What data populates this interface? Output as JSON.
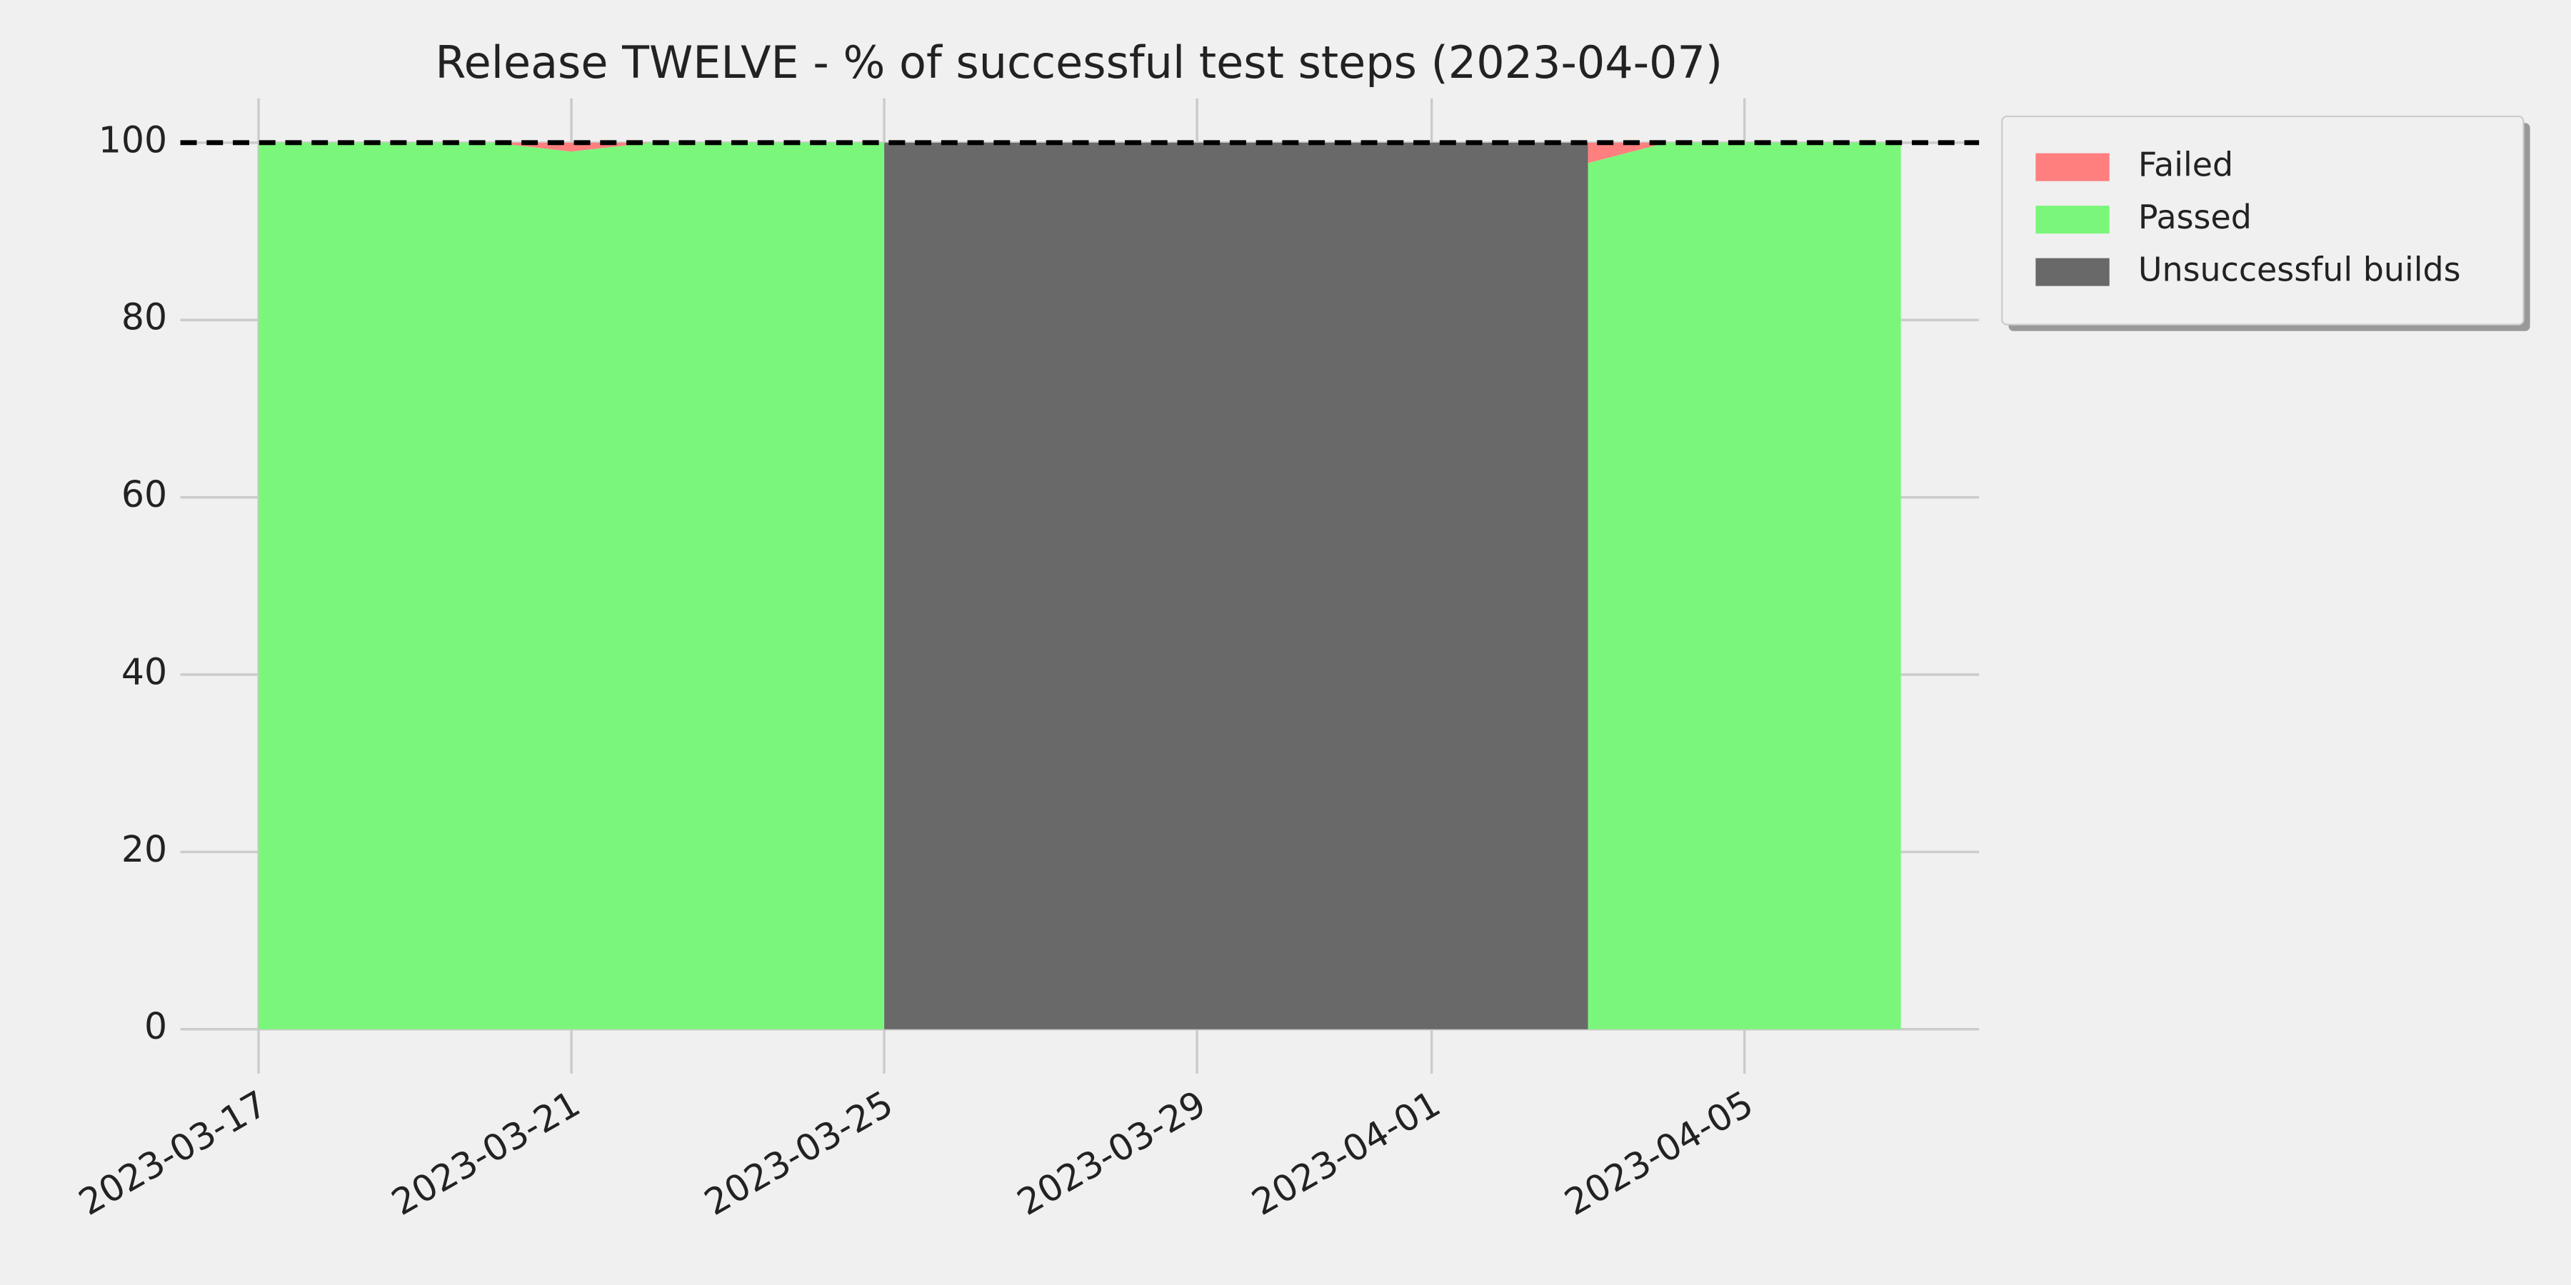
{
  "chart_data": {
    "type": "stacked_area",
    "title": "Release TWELVE - % of successful test steps (2023-04-07)",
    "x": [
      "2023-03-17",
      "2023-03-20",
      "2023-03-21",
      "2023-03-22",
      "2023-03-25",
      "2023-03-25",
      "2023-04-03",
      "2023-04-03",
      "2023-04-04",
      "2023-04-07"
    ],
    "series": [
      {
        "name": "Failed",
        "color": "#ff7f7f",
        "values": [
          0,
          0,
          1,
          0,
          0,
          0,
          0,
          2.3,
          0,
          0
        ]
      },
      {
        "name": "Passed",
        "color": "#7af77a",
        "values": [
          100,
          100,
          99,
          100,
          100,
          0,
          0,
          97.7,
          100,
          100
        ]
      },
      {
        "name": "Unsuccessful builds",
        "color": "#696969",
        "values": [
          0,
          0,
          0,
          0,
          0,
          100,
          100,
          0,
          0,
          0
        ]
      }
    ],
    "reference_line": 100,
    "xlim": [
      "2023-03-16",
      "2023-04-08"
    ],
    "xticks": [
      "2023-03-17",
      "2023-03-21",
      "2023-03-25",
      "2023-03-29",
      "2023-04-01",
      "2023-04-05"
    ],
    "ylim": [
      -5,
      105
    ],
    "yticks": [
      0,
      20,
      40,
      60,
      80,
      100
    ],
    "grid": true,
    "legend": "outside upper right"
  }
}
